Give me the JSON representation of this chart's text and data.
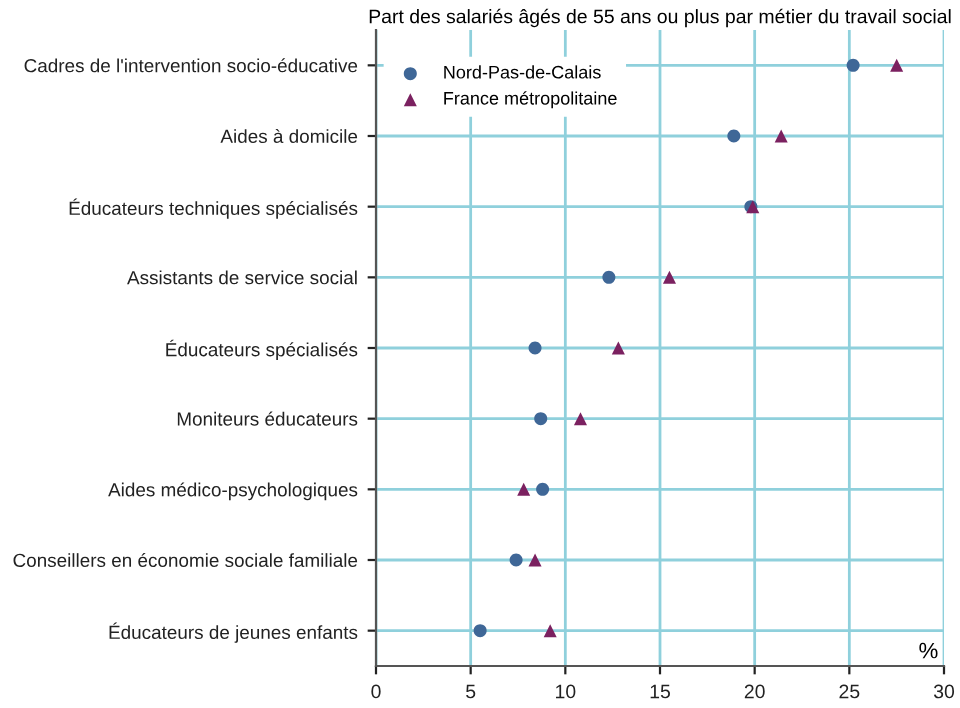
{
  "chart_data": {
    "type": "scatter",
    "orientation": "horizontal",
    "title": "Part des salariés âgés de 55 ans ou plus par métier du travail social",
    "categories": [
      "Cadres de l'intervention socio-éducative",
      "Aides à domicile",
      "Éducateurs techniques spécialisés",
      "Assistants de service social",
      "Éducateurs spécialisés",
      "Moniteurs éducateurs",
      "Aides médico-psychologiques",
      "Conseillers en économie sociale familiale",
      "Éducateurs de jeunes enfants"
    ],
    "series": [
      {
        "name": "Nord-Pas-de-Calais",
        "color": "#3f6797",
        "marker": "circle",
        "values": [
          25.2,
          18.9,
          19.8,
          12.3,
          8.4,
          8.7,
          8.8,
          7.4,
          5.5
        ]
      },
      {
        "name": "France métropolitaine",
        "color": "#7b2160",
        "marker": "triangle",
        "values": [
          27.5,
          21.4,
          19.9,
          15.5,
          12.8,
          10.8,
          7.8,
          8.4,
          9.2
        ]
      }
    ],
    "xlim": [
      0,
      30
    ],
    "xticks": [
      0,
      5,
      10,
      15,
      20,
      25,
      30
    ],
    "grid": true,
    "legend": "top left",
    "annotations": [
      "%"
    ]
  }
}
